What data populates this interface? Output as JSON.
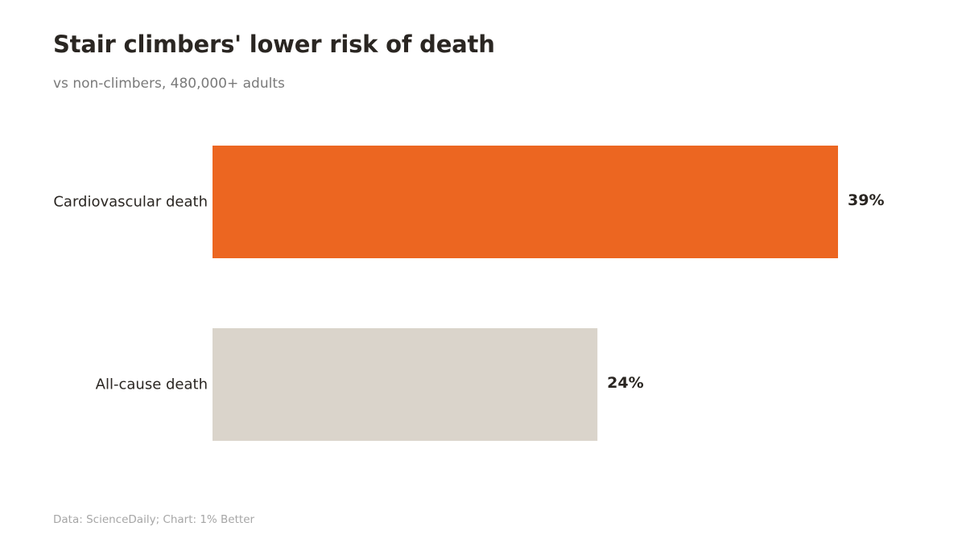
{
  "header": {
    "title": "Stair climbers' lower risk of death",
    "subtitle": "vs non-climbers, 480,000+ adults"
  },
  "footer": {
    "source": "Data: ScienceDaily; Chart: 1% Better"
  },
  "colors": {
    "highlight": "#EC6621",
    "muted": "#DAD4CB",
    "label": "#2a2622",
    "title": "#2a2622",
    "subtitle": "#7a7a7a",
    "footer": "#a6a6a6"
  },
  "chart_data": {
    "type": "bar",
    "orientation": "horizontal",
    "categories": [
      "Cardiovascular death",
      "All-cause death"
    ],
    "values": [
      39,
      24
    ],
    "value_labels": [
      "39%",
      "24%"
    ],
    "unit": "%",
    "bar_colors": [
      "#EC6621",
      "#DAD4CB"
    ],
    "title": "Stair climbers' lower risk of death",
    "subtitle": "vs non-climbers, 480,000+ adults",
    "xlabel": "",
    "ylabel": "",
    "xlim": [
      0,
      39
    ],
    "grid": false,
    "legend": "none"
  }
}
